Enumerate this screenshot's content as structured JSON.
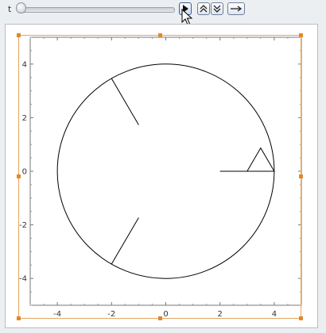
{
  "controls": {
    "parameter_label": "t",
    "slider_value_fraction": 0.0,
    "play_icon": "play-icon",
    "faster_icon": "double-chevron-up-icon",
    "slower_icon": "double-chevron-down-icon",
    "direction_icon": "arrow-right-icon"
  },
  "plot": {
    "x_ticks": [
      "-4",
      "-2",
      "0",
      "2",
      "4"
    ],
    "y_ticks": [
      "4",
      "2",
      "0",
      "-2",
      "-4"
    ],
    "xlim": [
      -5,
      5
    ],
    "ylim": [
      -5,
      5
    ],
    "circle": {
      "center": [
        0,
        0
      ],
      "radius": 4
    },
    "segments": [
      {
        "from": [
          -2,
          3.46
        ],
        "to": [
          -1,
          1.73
        ]
      },
      {
        "from": [
          -2,
          -3.46
        ],
        "to": [
          -1,
          -1.73
        ]
      },
      {
        "from": [
          2,
          0
        ],
        "to": [
          4,
          0
        ]
      }
    ],
    "triangle": [
      [
        3,
        0
      ],
      [
        3.5,
        0.87
      ],
      [
        4,
        0
      ]
    ],
    "selection_color": "#e08a2a"
  }
}
